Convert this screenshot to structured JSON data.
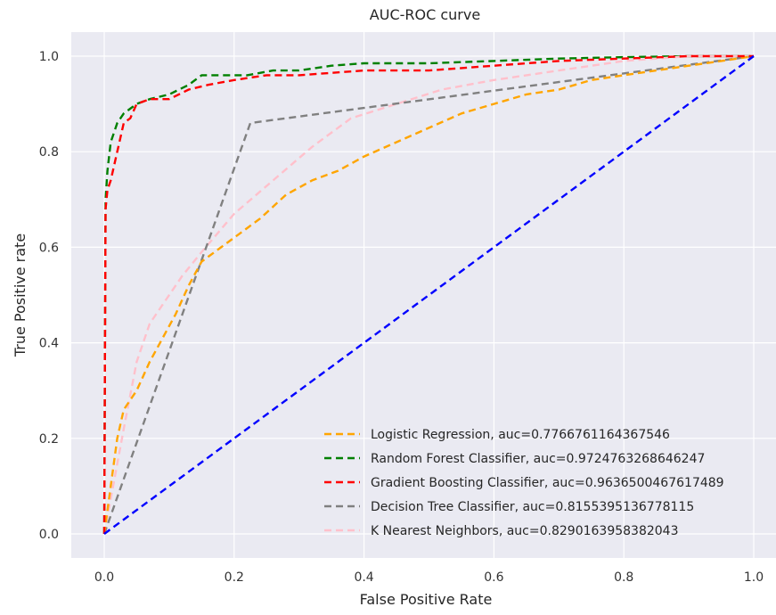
{
  "chart_data": {
    "type": "line",
    "title": "AUC-ROC curve",
    "xlabel": "False Positive Rate",
    "ylabel": "True Positive rate",
    "xlim": [
      -0.05,
      1.05
    ],
    "ylim": [
      -0.05,
      1.05
    ],
    "grid": true,
    "legend_position": "lower-right",
    "x_ticks": [
      "0.0",
      "0.2",
      "0.4",
      "0.6",
      "0.8",
      "1.0"
    ],
    "y_ticks": [
      "0.0",
      "0.2",
      "0.4",
      "0.6",
      "0.8",
      "1.0"
    ],
    "series": [
      {
        "name": "Logistic Regression, auc=0.7766761164367546",
        "color": "#ffa500",
        "x": [
          0,
          0.01,
          0.02,
          0.03,
          0.05,
          0.07,
          0.09,
          0.11,
          0.13,
          0.15,
          0.18,
          0.21,
          0.24,
          0.28,
          0.32,
          0.36,
          0.4,
          0.45,
          0.5,
          0.55,
          0.6,
          0.65,
          0.7,
          0.75,
          0.8,
          0.85,
          0.9,
          0.95,
          1.0
        ],
        "y": [
          0,
          0.1,
          0.2,
          0.26,
          0.3,
          0.36,
          0.41,
          0.46,
          0.52,
          0.57,
          0.6,
          0.63,
          0.66,
          0.71,
          0.74,
          0.76,
          0.79,
          0.82,
          0.85,
          0.88,
          0.9,
          0.92,
          0.93,
          0.95,
          0.96,
          0.97,
          0.98,
          0.99,
          1.0
        ]
      },
      {
        "name": "Random Forest Classifier, auc=0.9724763268646247",
        "color": "#008000",
        "x": [
          0,
          0.002,
          0.005,
          0.01,
          0.02,
          0.03,
          0.05,
          0.07,
          0.1,
          0.13,
          0.15,
          0.18,
          0.22,
          0.26,
          0.3,
          0.35,
          0.4,
          0.5,
          0.6,
          0.7,
          0.8,
          0.9,
          1.0
        ],
        "y": [
          0,
          0.7,
          0.76,
          0.82,
          0.86,
          0.88,
          0.9,
          0.91,
          0.92,
          0.94,
          0.96,
          0.96,
          0.96,
          0.97,
          0.97,
          0.98,
          0.985,
          0.985,
          0.99,
          0.995,
          0.998,
          1.0,
          1.0
        ]
      },
      {
        "name": "Gradient Boosting Classifier, auc=0.9636500467617489",
        "color": "#ff0000",
        "x": [
          0,
          0.002,
          0.005,
          0.01,
          0.02,
          0.03,
          0.04,
          0.05,
          0.07,
          0.1,
          0.13,
          0.16,
          0.2,
          0.25,
          0.3,
          0.4,
          0.5,
          0.6,
          0.7,
          0.8,
          0.9,
          1.0
        ],
        "y": [
          0,
          0.68,
          0.72,
          0.74,
          0.8,
          0.86,
          0.87,
          0.9,
          0.91,
          0.91,
          0.93,
          0.94,
          0.95,
          0.96,
          0.96,
          0.97,
          0.97,
          0.98,
          0.99,
          0.995,
          1.0,
          1.0
        ]
      },
      {
        "name": "Decision Tree Classifier, auc=0.8155395136778115",
        "color": "#808080",
        "x": [
          0,
          0.225,
          1.0
        ],
        "y": [
          0,
          0.86,
          1.0
        ]
      },
      {
        "name": "K Nearest Neighbors, auc=0.8290163958382043",
        "color": "#ffc0cb",
        "x": [
          0,
          0.03,
          0.05,
          0.07,
          0.09,
          0.12,
          0.15,
          0.2,
          0.26,
          0.32,
          0.38,
          0.45,
          0.52,
          0.6,
          0.7,
          0.8,
          0.9,
          1.0
        ],
        "y": [
          0,
          0.22,
          0.36,
          0.44,
          0.48,
          0.54,
          0.59,
          0.67,
          0.74,
          0.81,
          0.87,
          0.9,
          0.93,
          0.95,
          0.97,
          0.99,
          1.0,
          1.0
        ]
      }
    ],
    "reference_line": {
      "color": "#0000ff",
      "x": [
        0,
        1
      ],
      "y": [
        0,
        1
      ]
    }
  }
}
